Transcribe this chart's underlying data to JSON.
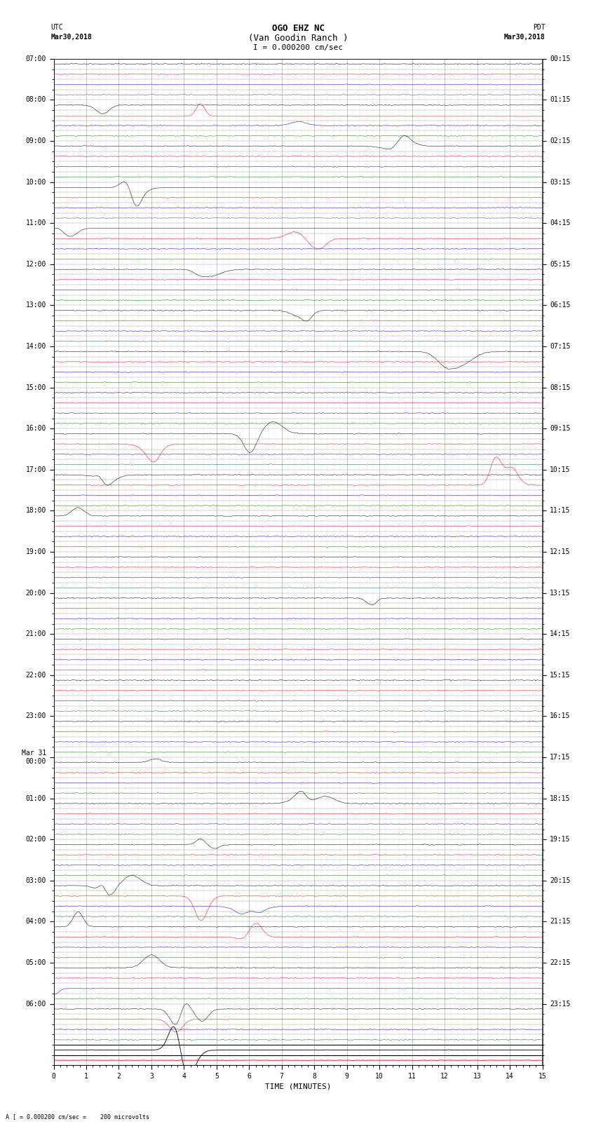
{
  "title_line1": "OGO EHZ NC",
  "title_line2": "(Van Goodin Ranch )",
  "title_line3": "I = 0.000200 cm/sec",
  "left_label_top": "UTC",
  "left_label_date": "Mar30,2018",
  "right_label_top": "PDT",
  "right_label_date": "Mar30,2018",
  "bottom_label": "TIME (MINUTES)",
  "bottom_note": "A [ = 0.000200 cm/sec =    200 microvolts",
  "hour_labels_utc": [
    "07:00",
    "08:00",
    "09:00",
    "10:00",
    "11:00",
    "12:00",
    "13:00",
    "14:00",
    "15:00",
    "16:00",
    "17:00",
    "18:00",
    "19:00",
    "20:00",
    "21:00",
    "22:00",
    "23:00",
    "Mar 31\n00:00",
    "01:00",
    "02:00",
    "03:00",
    "04:00",
    "05:00",
    "06:00"
  ],
  "hour_labels_pdt": [
    "00:15",
    "01:15",
    "02:15",
    "03:15",
    "04:15",
    "05:15",
    "06:15",
    "07:15",
    "08:15",
    "09:15",
    "10:15",
    "11:15",
    "12:15",
    "13:15",
    "14:15",
    "15:15",
    "16:15",
    "17:15",
    "18:15",
    "19:15",
    "20:15",
    "21:15",
    "22:15",
    "23:15"
  ],
  "n_hours": 24,
  "traces_per_hour": 4,
  "n_cols": 15,
  "fig_width": 8.5,
  "fig_height": 16.13,
  "bg_color": "#ffffff",
  "grid_color": "#999999",
  "trace_colors": [
    "black",
    "red",
    "blue",
    "green"
  ],
  "axis_label_fontsize": 8,
  "title_fontsize": 9,
  "tick_fontsize": 7,
  "noise_amp": 0.03,
  "event_amp": 0.35
}
